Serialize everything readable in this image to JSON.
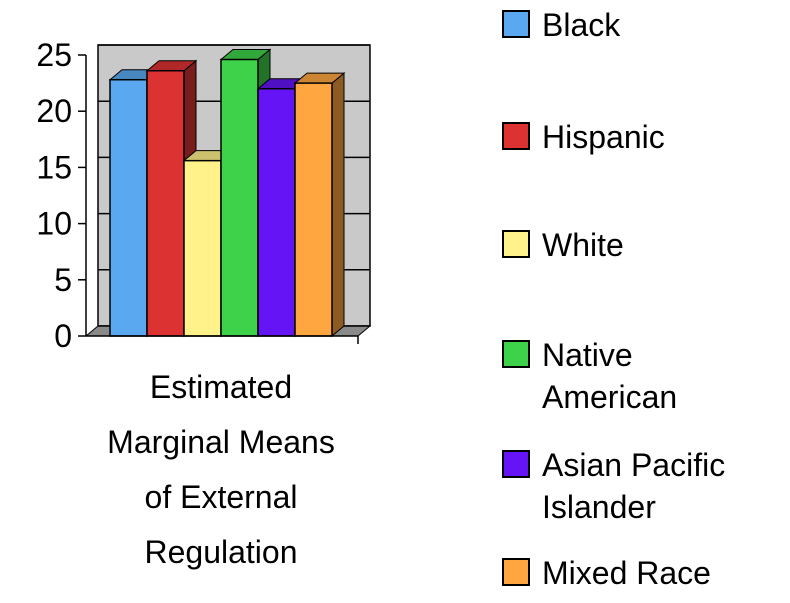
{
  "chart_data": {
    "type": "bar",
    "categories": [
      "Estimated\nMarginal Means\nof External\nRegulation"
    ],
    "series": [
      {
        "name": "Black",
        "values": [
          22.8
        ],
        "color": "#5aa9f0"
      },
      {
        "name": "Hispanic",
        "values": [
          23.6
        ],
        "color": "#dc3232"
      },
      {
        "name": "White",
        "values": [
          15.6
        ],
        "color": "#fff28a"
      },
      {
        "name": "Native\nAmerican",
        "values": [
          24.6
        ],
        "color": "#3ed14a"
      },
      {
        "name": "Asian Pacific\nIslander",
        "values": [
          22.0
        ],
        "color": "#6414f5"
      },
      {
        "name": "Mixed Race",
        "values": [
          22.5
        ],
        "color": "#ffa640"
      }
    ],
    "y_ticks": [
      "0",
      "5",
      "10",
      "15",
      "20",
      "25"
    ],
    "ylim": [
      0,
      25
    ],
    "grid": true,
    "legend_position": "right",
    "style": "3d-column"
  }
}
